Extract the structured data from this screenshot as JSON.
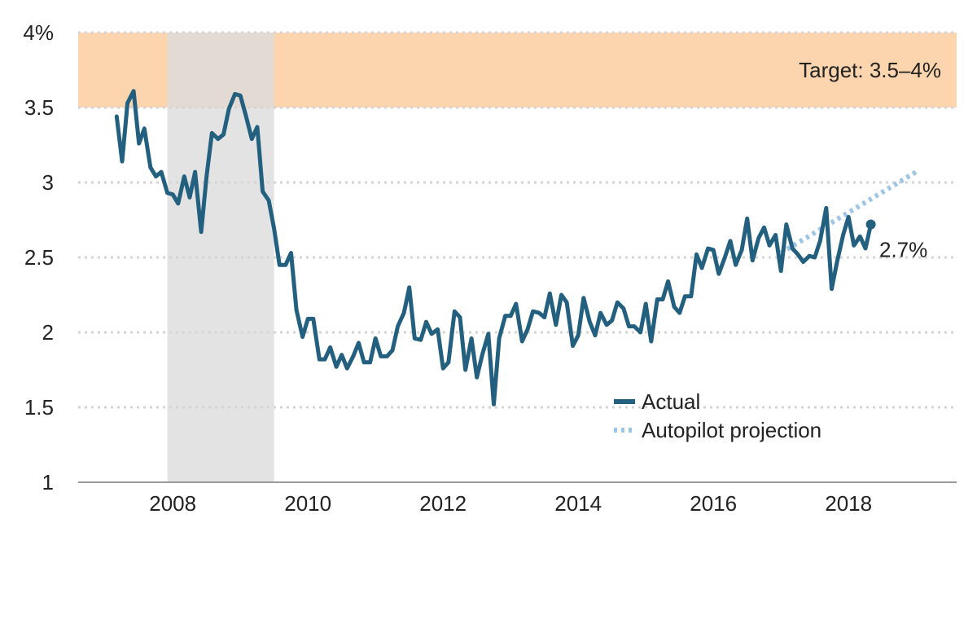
{
  "chart_data": {
    "type": "line",
    "title": "",
    "xlabel": "",
    "ylabel": "",
    "xlim": [
      2006.6,
      2019.6
    ],
    "ylim": [
      1,
      4
    ],
    "x_ticks": [
      2008,
      2010,
      2012,
      2014,
      2016,
      2018
    ],
    "x_tick_labels": [
      "2008",
      "2010",
      "2012",
      "2014",
      "2016",
      "2018"
    ],
    "y_ticks": [
      1,
      1.5,
      2,
      2.5,
      3,
      3.5,
      4
    ],
    "y_tick_labels": [
      "1",
      "1.5",
      "2",
      "2.5",
      "3",
      "3.5",
      "4%"
    ],
    "grid": "horizontal-dotted",
    "target_band": {
      "low": 3.5,
      "high": 4,
      "label": "Target: 3.5–4%",
      "color": "#fcd5ae"
    },
    "recession_shading": {
      "start": 2007.92,
      "end": 2009.5,
      "color": "#dcdcdc"
    },
    "end_label": "2.7%",
    "legend": {
      "position": "bottom-right"
    },
    "series": [
      {
        "name": "Actual",
        "color": "#23607f",
        "style": "solid",
        "x": [
          2007.17,
          2007.25,
          2007.33,
          2007.42,
          2007.5,
          2007.58,
          2007.67,
          2007.75,
          2007.83,
          2007.92,
          2008.0,
          2008.08,
          2008.17,
          2008.25,
          2008.33,
          2008.42,
          2008.5,
          2008.58,
          2008.67,
          2008.75,
          2008.83,
          2008.92,
          2009.0,
          2009.08,
          2009.17,
          2009.25,
          2009.33,
          2009.42,
          2009.5,
          2009.58,
          2009.67,
          2009.75,
          2009.83,
          2009.92,
          2010.0,
          2010.08,
          2010.17,
          2010.25,
          2010.33,
          2010.42,
          2010.5,
          2010.58,
          2010.67,
          2010.75,
          2010.83,
          2010.92,
          2011.0,
          2011.08,
          2011.17,
          2011.25,
          2011.33,
          2011.42,
          2011.5,
          2011.58,
          2011.67,
          2011.75,
          2011.83,
          2011.92,
          2012.0,
          2012.08,
          2012.17,
          2012.25,
          2012.33,
          2012.42,
          2012.5,
          2012.58,
          2012.67,
          2012.75,
          2012.83,
          2012.92,
          2013.0,
          2013.08,
          2013.17,
          2013.25,
          2013.33,
          2013.42,
          2013.5,
          2013.58,
          2013.67,
          2013.75,
          2013.83,
          2013.92,
          2014.0,
          2014.08,
          2014.17,
          2014.25,
          2014.33,
          2014.42,
          2014.5,
          2014.58,
          2014.67,
          2014.75,
          2014.83,
          2014.92,
          2015.0,
          2015.08,
          2015.17,
          2015.25,
          2015.33,
          2015.42,
          2015.5,
          2015.58,
          2015.67,
          2015.75,
          2015.83,
          2015.92,
          2016.0,
          2016.08,
          2016.17,
          2016.25,
          2016.33,
          2016.42,
          2016.5,
          2016.58,
          2016.67,
          2016.75,
          2016.83,
          2016.92,
          2017.0,
          2017.08,
          2017.17,
          2017.25,
          2017.33,
          2017.42,
          2017.5,
          2017.58,
          2017.67,
          2017.75,
          2017.83,
          2017.92,
          2018.0,
          2018.08,
          2018.17,
          2018.25,
          2018.33
        ],
        "values": [
          3.44,
          3.14,
          3.53,
          3.61,
          3.26,
          3.36,
          3.1,
          3.04,
          3.07,
          2.93,
          2.92,
          2.86,
          3.04,
          2.9,
          3.07,
          2.67,
          3.04,
          3.33,
          3.29,
          3.32,
          3.49,
          3.59,
          3.58,
          3.45,
          3.29,
          3.37,
          2.94,
          2.88,
          2.69,
          2.45,
          2.45,
          2.53,
          2.15,
          1.97,
          2.09,
          2.09,
          1.82,
          1.82,
          1.9,
          1.77,
          1.85,
          1.76,
          1.84,
          1.93,
          1.8,
          1.8,
          1.96,
          1.84,
          1.84,
          1.88,
          2.04,
          2.13,
          2.3,
          1.96,
          1.95,
          2.07,
          1.99,
          2.02,
          1.76,
          1.8,
          2.14,
          2.1,
          1.75,
          1.96,
          1.7,
          1.85,
          1.99,
          1.52,
          1.96,
          2.11,
          2.11,
          2.19,
          1.94,
          2.02,
          2.14,
          2.13,
          2.1,
          2.26,
          2.05,
          2.25,
          2.2,
          1.91,
          1.98,
          2.23,
          2.07,
          1.98,
          2.13,
          2.05,
          2.08,
          2.2,
          2.16,
          2.04,
          2.04,
          2.0,
          2.19,
          1.94,
          2.22,
          2.22,
          2.34,
          2.17,
          2.13,
          2.24,
          2.24,
          2.52,
          2.43,
          2.56,
          2.55,
          2.39,
          2.5,
          2.61,
          2.45,
          2.55,
          2.76,
          2.48,
          2.63,
          2.7,
          2.58,
          2.65,
          2.41,
          2.72,
          2.56,
          2.52,
          2.47,
          2.51,
          2.5,
          2.61,
          2.83,
          2.29,
          2.47,
          2.65,
          2.77,
          2.58,
          2.64,
          2.56,
          2.72
        ]
      },
      {
        "name": "Autopilot projection",
        "color": "#9dc5e6",
        "style": "dotted",
        "x": [
          2017.0,
          2019.0
        ],
        "values": [
          2.53,
          3.07
        ]
      }
    ]
  }
}
